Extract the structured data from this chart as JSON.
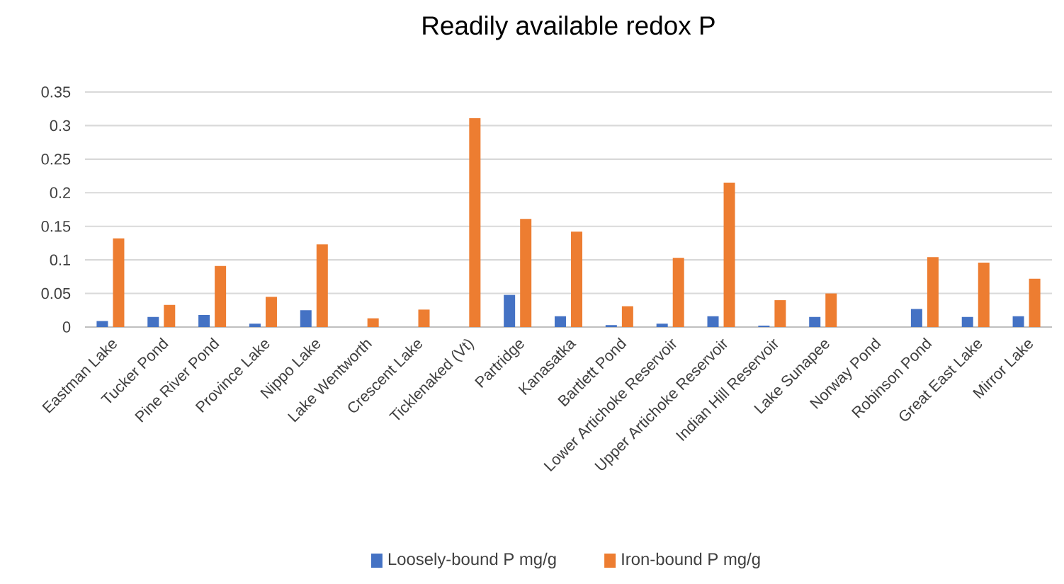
{
  "chart_data": {
    "type": "bar",
    "title": "Readily available redox P",
    "categories": [
      "Eastman Lake",
      "Tucker Pond",
      "Pine River Pond",
      "Province Lake",
      "Nippo Lake",
      "Lake Wentworth",
      "Crescent Lake",
      "Ticklenaked (Vt)",
      "Partridge",
      "Kanasatka",
      "Bartlett Pond",
      "Lower Artichoke Reservoir",
      "Upper Artichoke Reservoir",
      "Indian Hill Reservoir",
      "Lake Sunapee",
      "Norway Pond",
      "Robinson Pond",
      "Great East Lake",
      "Mirror Lake"
    ],
    "series": [
      {
        "name": "Loosely-bound P mg/g",
        "color": "#4472c4",
        "values": [
          0.009,
          0.015,
          0.018,
          0.005,
          0.025,
          null,
          null,
          null,
          0.048,
          0.016,
          0.003,
          0.005,
          0.016,
          0.002,
          0.015,
          null,
          0.027,
          0.015,
          0.016
        ]
      },
      {
        "name": "Iron-bound P mg/g",
        "color": "#ed7d31",
        "values": [
          0.132,
          0.033,
          0.091,
          0.045,
          0.123,
          0.013,
          0.026,
          0.311,
          0.161,
          0.142,
          0.031,
          0.103,
          0.215,
          0.04,
          0.05,
          null,
          0.104,
          0.096,
          0.072
        ]
      }
    ],
    "ylim": [
      0,
      0.35
    ],
    "yticks": [
      0,
      0.05,
      0.1,
      0.15,
      0.2,
      0.25,
      0.3,
      0.35
    ],
    "grid": "y",
    "legend": "bottom"
  }
}
